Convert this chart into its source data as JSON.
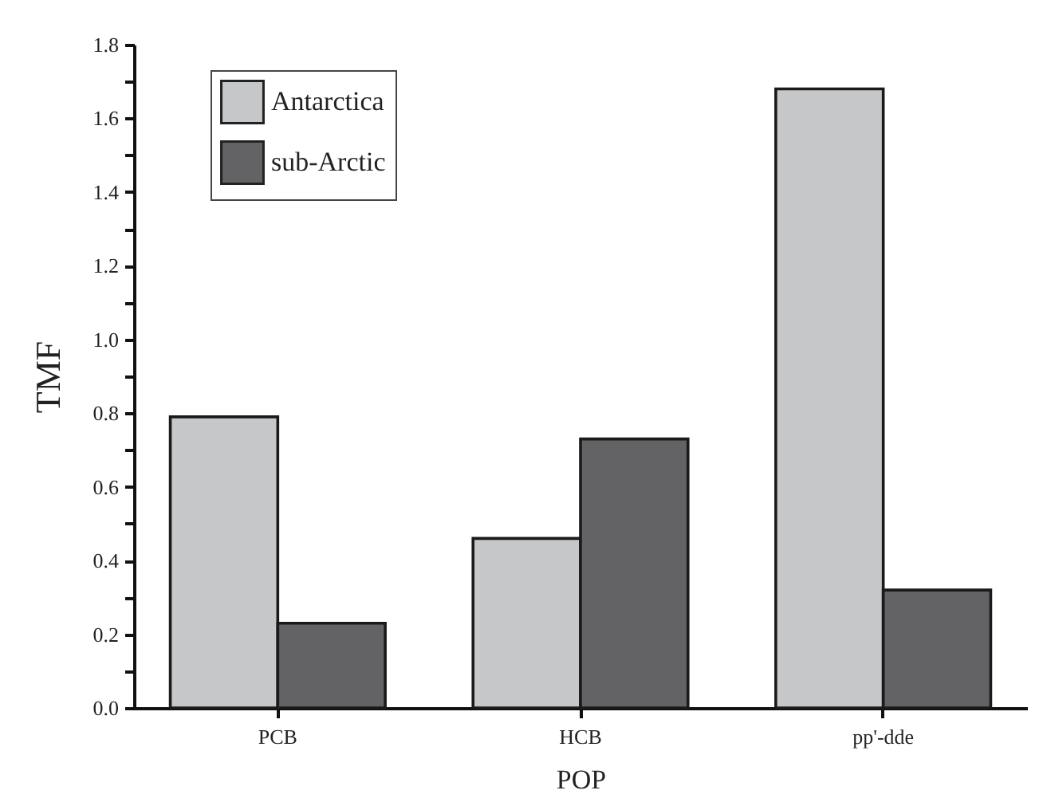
{
  "chart_data": {
    "type": "bar",
    "xlabel": "POP",
    "ylabel": "TMF",
    "categories": [
      "PCB",
      "HCB",
      "pp'-dde"
    ],
    "series": [
      {
        "name": "Antarctica",
        "color": "#c6c7c9",
        "values": [
          0.79,
          0.46,
          1.68
        ]
      },
      {
        "name": "sub-Arctic",
        "color": "#636365",
        "values": [
          0.23,
          0.73,
          0.32
        ]
      }
    ],
    "ylim": [
      0,
      1.8
    ],
    "yticks": [
      {
        "value": 0,
        "label": "0.0"
      },
      {
        "value": 0.1,
        "label": null
      },
      0.2,
      {
        "value": 0.3,
        "label": null
      },
      0.4,
      {
        "value": 0.5,
        "label": null
      },
      0.6,
      {
        "value": 0.7,
        "label": null
      },
      0.8,
      {
        "value": 0.9,
        "label": null
      },
      {
        "value": 1,
        "label": "1.0"
      },
      {
        "value": 1.1,
        "label": null
      },
      1.2,
      {
        "value": 1.3,
        "label": null
      },
      1.4,
      {
        "value": 1.5,
        "label": null
      },
      1.6,
      {
        "value": 1.7,
        "label": null
      },
      1.8
    ],
    "grid": false,
    "legend": "top left"
  }
}
